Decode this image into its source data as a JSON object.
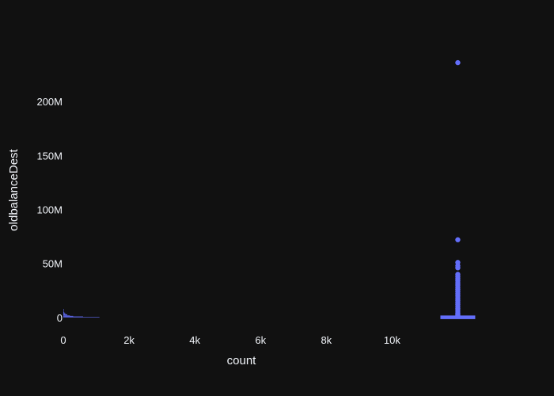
{
  "chart_data": {
    "type": "scatter",
    "title": "",
    "xlabel": "count",
    "ylabel": "oldbalanceDest",
    "xlim": [
      0,
      13000
    ],
    "ylim": [
      -14000000,
      250000000
    ],
    "x_ticks": [
      {
        "value": 0,
        "label": "0"
      },
      {
        "value": 2000,
        "label": "2k"
      },
      {
        "value": 4000,
        "label": "4k"
      },
      {
        "value": 6000,
        "label": "6k"
      },
      {
        "value": 8000,
        "label": "8k"
      },
      {
        "value": 10000,
        "label": "10k"
      }
    ],
    "y_ticks": [
      {
        "value": 0,
        "label": "0"
      },
      {
        "value": 50000000,
        "label": "50M"
      },
      {
        "value": 100000000,
        "label": "100M"
      },
      {
        "value": 150000000,
        "label": "150M"
      },
      {
        "value": 200000000,
        "label": "200M"
      }
    ],
    "color": "#636efa",
    "histogram": {
      "bins_y": [
        0,
        500000,
        1000000,
        1500000,
        2000000,
        3000000,
        4000000,
        5000000,
        6000000,
        7000000
      ],
      "counts": [
        1100,
        600,
        300,
        200,
        120,
        60,
        30,
        12,
        5,
        2
      ]
    },
    "box": {
      "x": 12000,
      "min": 0,
      "q1": 0,
      "median": 10000,
      "q3": 400000,
      "upper_fence": 1000000,
      "outliers": [
        236000000,
        72000000,
        51000000,
        48000000,
        46000000,
        40000000,
        38000000,
        36000000,
        34000000,
        32000000,
        30000000,
        28000000,
        26000000,
        24000000,
        22000000,
        20000000,
        18000000,
        16000000,
        14000000,
        12000000,
        10000000,
        8000000,
        6000000,
        4000000,
        3000000,
        2000000
      ]
    }
  }
}
